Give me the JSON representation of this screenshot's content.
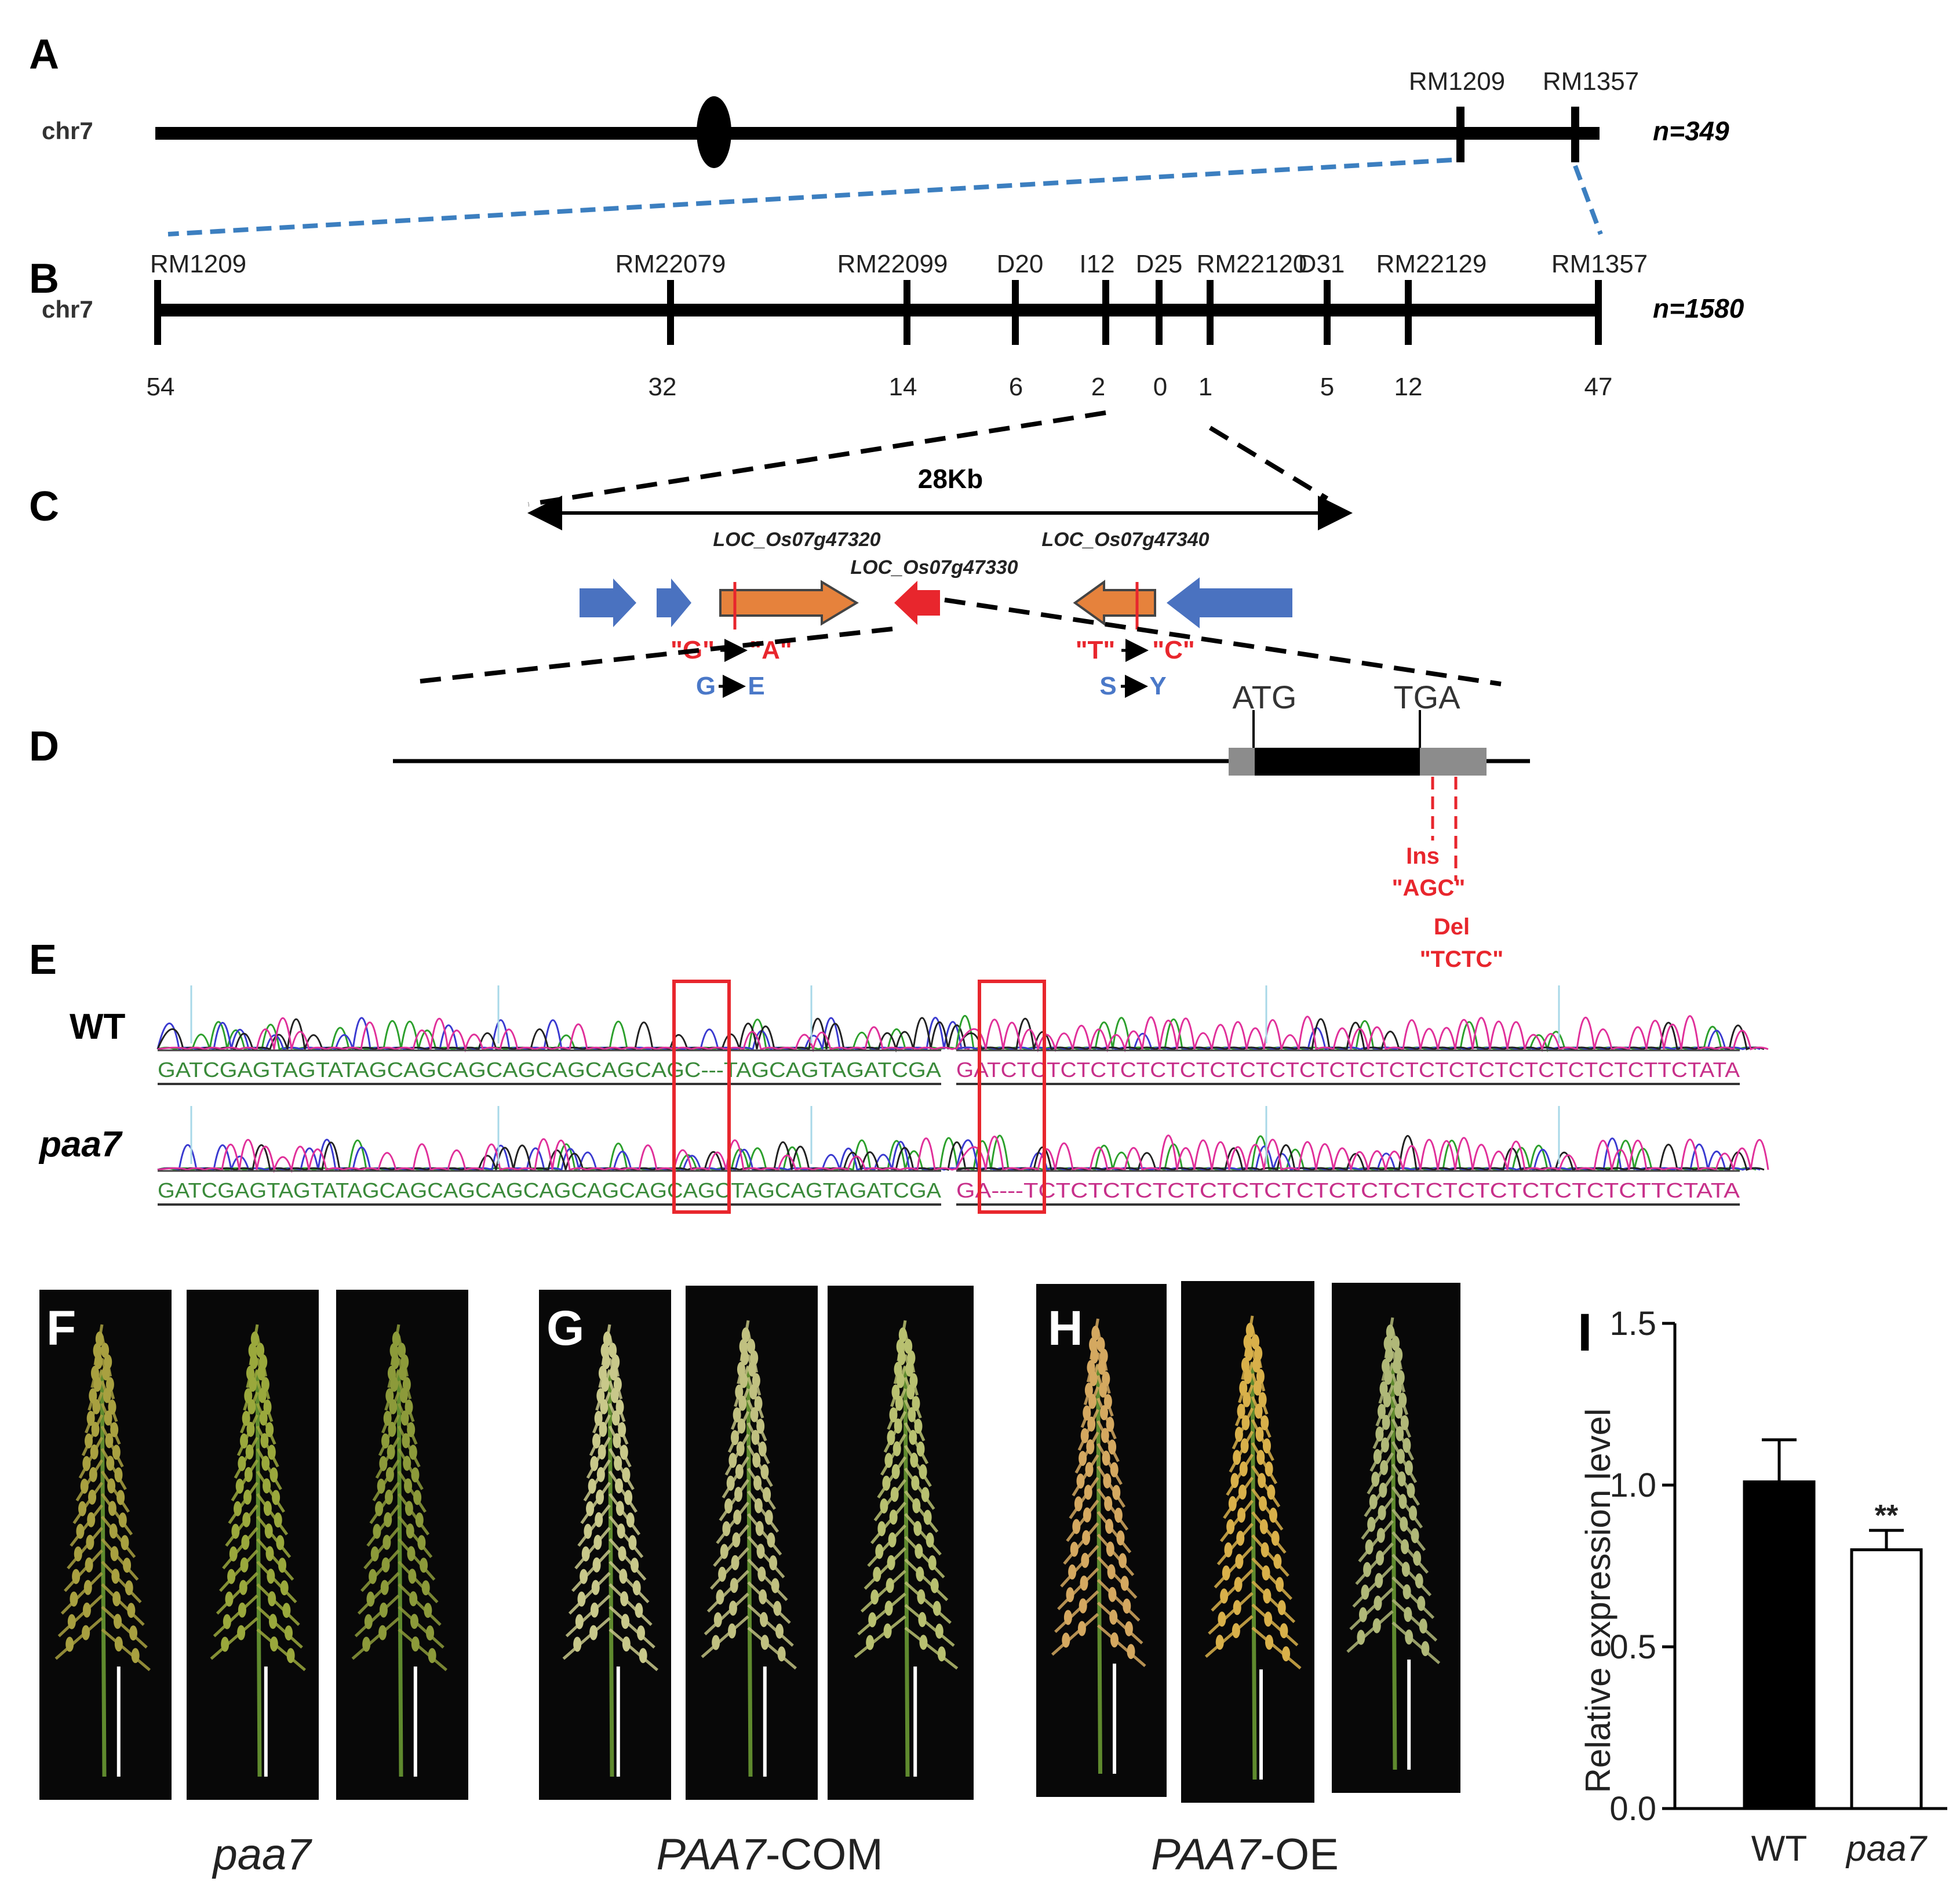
{
  "panel_letters": {
    "a": "A",
    "b": "B",
    "c": "C",
    "d": "D",
    "e": "E",
    "f": "F",
    "g": "G",
    "h": "H",
    "i": "I"
  },
  "panel_a": {
    "chrom": "chr7",
    "n": "n=349",
    "markers": [
      "RM1209",
      "RM1357"
    ]
  },
  "panel_b": {
    "chrom": "chr7",
    "n": "n=1580",
    "markers": [
      "RM1209",
      "RM22079",
      "RM22099",
      "D20",
      "I12",
      "D25",
      "RM22120",
      "D31",
      "RM22129",
      "RM1357"
    ],
    "recombinants": [
      "54",
      "32",
      "14",
      "6",
      "2",
      "0",
      "1",
      "5",
      "12",
      "47"
    ]
  },
  "panel_c": {
    "size": "28Kb",
    "genes": [
      "LOC_Os07g47320",
      "LOC_Os07g47330",
      "LOC_Os07g47340"
    ],
    "snp1_nt_from": "\"G\"",
    "snp1_nt_to": "\"A\"",
    "snp1_aa_from": "G",
    "snp1_aa_to": "E",
    "snp2_nt_from": "\"T\"",
    "snp2_nt_to": "\"C\"",
    "snp2_aa_from": "S",
    "snp2_aa_to": "Y"
  },
  "panel_d": {
    "start": "ATG",
    "stop": "TGA",
    "ins_label": "Ins",
    "ins_seq": "\"AGC\"",
    "del_label": "Del",
    "del_seq": "\"TCTC\""
  },
  "panel_e": {
    "wt_label": "WT",
    "mut_label": "paa7",
    "wt_seq_left": "GATCGAGTAGTATAGCAGCAGCAGCAGCAGCAGC---TAGCAGTAGATCGA",
    "wt_seq_right": "GATCTCTCTCTCTCTCTCTCTCTCTCTCTCTCTCTCTCTCTCTCTCTTCTATA",
    "mut_seq_left": "GATCGAGTAGTATAGCAGCAGCAGCAGCAGCAGCAGCTAGCAGTAGATCGA",
    "mut_seq_right": "GA----TCTCTCTCTCTCTCTCTCTCTCTCTCTCTCTCTCTCTCTTCTATA"
  },
  "panel_fgh": {
    "captions": [
      {
        "italic": "paa7",
        "rest": ""
      },
      {
        "italic": "PAA7",
        "rest": "-COM"
      },
      {
        "italic": "PAA7",
        "rest": "-OE"
      }
    ]
  },
  "colors": {
    "chromosome": "#000000",
    "zoom_dash_blue": "#3c7fc0",
    "mutation_red": "#e8262d",
    "amino_acid_blue": "#4a78c8",
    "gene_orange": "#e6823c",
    "gene_blue": "#4a72c0",
    "gene_red": "#e8262d",
    "trace_a": "#2ca02c",
    "trace_c": "#3a3ad0",
    "trace_g": "#222222",
    "trace_t": "#e0309a"
  },
  "chart_data": {
    "type": "bar",
    "title": "",
    "xlabel": "",
    "ylabel": "Relative expression level",
    "categories": [
      "WT",
      "paa7"
    ],
    "values": [
      1.01,
      0.8
    ],
    "errors": [
      0.13,
      0.06
    ],
    "significance": [
      "",
      "**"
    ],
    "bar_fill": [
      "#000000",
      "#ffffff"
    ],
    "ylim": [
      0.0,
      1.5
    ],
    "yticks": [
      "0.0",
      "0.5",
      "1.0",
      "1.5"
    ],
    "grid": false
  }
}
